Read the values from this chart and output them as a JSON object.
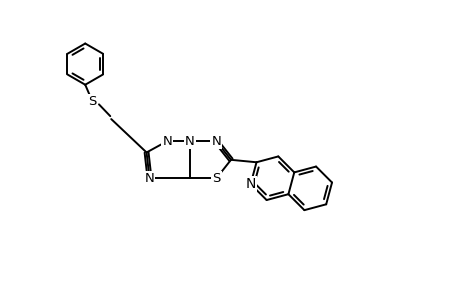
{
  "background_color": "#ffffff",
  "line_color": "#000000",
  "line_width": 1.4,
  "font_size": 9.5,
  "figsize": [
    4.6,
    3.0
  ],
  "dpi": 100,
  "xlim": [
    -2.5,
    6.0
  ],
  "ylim": [
    -3.0,
    3.0
  ]
}
